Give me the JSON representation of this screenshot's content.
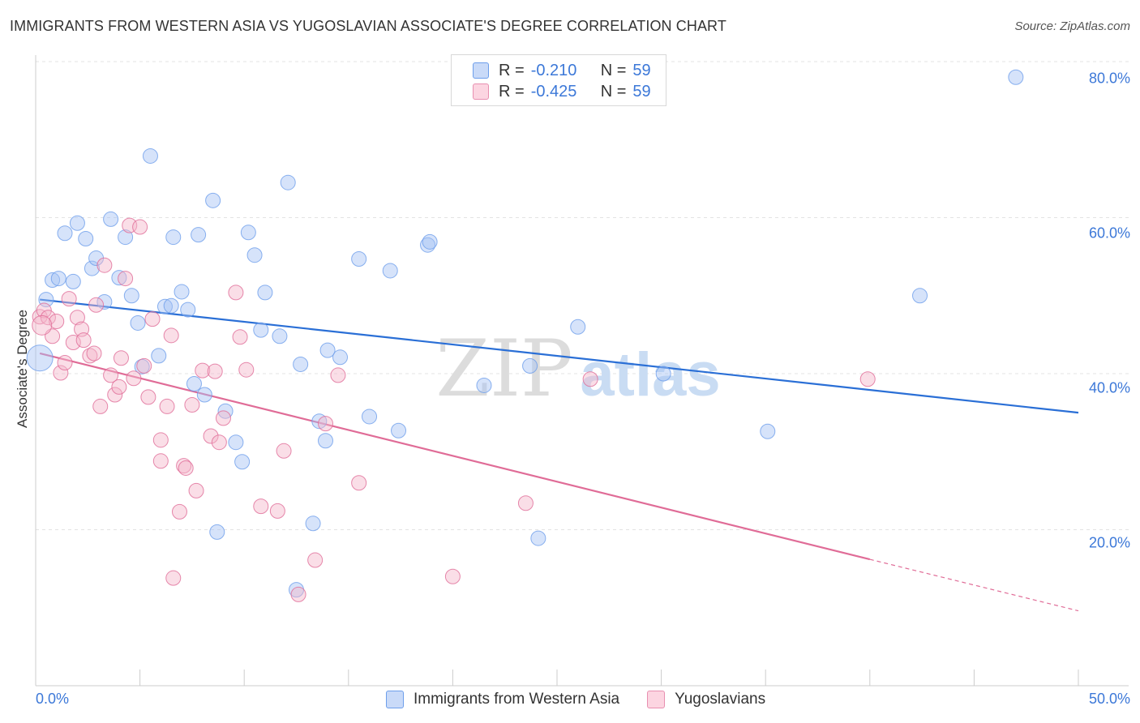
{
  "header": {
    "title": "IMMIGRANTS FROM WESTERN ASIA VS YUGOSLAVIAN ASSOCIATE'S DEGREE CORRELATION CHART",
    "source": "Source: ZipAtlas.com"
  },
  "watermark": {
    "zip": "ZIP",
    "atlas": "atlas"
  },
  "legend": {
    "r_label": "R =",
    "n_label": "N =",
    "rows": [
      {
        "r": "-0.210",
        "n": "59",
        "color": "#a4c2f4"
      },
      {
        "r": "-0.425",
        "n": "59",
        "color": "#f4b6c9"
      }
    ]
  },
  "chart_data": {
    "type": "scatter",
    "title": "IMMIGRANTS FROM WESTERN ASIA VS YUGOSLAVIAN ASSOCIATE'S DEGREE CORRELATION CHART",
    "xlabel": "",
    "ylabel": "Associate's Degree",
    "xlim": [
      0,
      50
    ],
    "ylim": [
      0,
      80
    ],
    "x_tick_labels": [
      "0.0%",
      "50.0%"
    ],
    "y_ticks": [
      20,
      40,
      60,
      80
    ],
    "y_tick_labels": [
      "20.0%",
      "40.0%",
      "60.0%",
      "80.0%"
    ],
    "grid": true,
    "legend_position": "top-center",
    "series": [
      {
        "name": "Immigrants from Western Asia",
        "color": "#6d9eeb",
        "fill": "#a4c2f4",
        "r": -0.21,
        "n": 59,
        "trend": {
          "x": [
            0.2,
            50
          ],
          "y": [
            49.5,
            35.0
          ]
        },
        "points": [
          [
            0.2,
            42.0
          ],
          [
            0.5,
            49.5
          ],
          [
            0.8,
            52.0
          ],
          [
            1.1,
            52.2
          ],
          [
            1.4,
            58.0
          ],
          [
            1.8,
            51.8
          ],
          [
            2.0,
            59.3
          ],
          [
            2.4,
            57.3
          ],
          [
            2.7,
            53.5
          ],
          [
            2.9,
            54.8
          ],
          [
            3.3,
            49.2
          ],
          [
            3.6,
            59.8
          ],
          [
            4.0,
            52.3
          ],
          [
            4.3,
            57.5
          ],
          [
            4.6,
            50.0
          ],
          [
            4.9,
            46.5
          ],
          [
            5.1,
            40.9
          ],
          [
            5.5,
            67.9
          ],
          [
            5.9,
            42.3
          ],
          [
            6.2,
            48.6
          ],
          [
            6.5,
            48.7
          ],
          [
            6.6,
            57.5
          ],
          [
            7.0,
            50.5
          ],
          [
            7.3,
            48.2
          ],
          [
            7.6,
            38.7
          ],
          [
            7.8,
            57.8
          ],
          [
            8.1,
            37.3
          ],
          [
            8.5,
            62.2
          ],
          [
            8.7,
            19.7
          ],
          [
            9.1,
            35.2
          ],
          [
            9.6,
            31.2
          ],
          [
            9.9,
            28.7
          ],
          [
            10.2,
            58.1
          ],
          [
            10.5,
            55.2
          ],
          [
            10.8,
            45.6
          ],
          [
            11.0,
            50.4
          ],
          [
            11.7,
            44.8
          ],
          [
            12.1,
            64.5
          ],
          [
            12.5,
            12.3
          ],
          [
            12.7,
            41.2
          ],
          [
            13.3,
            20.8
          ],
          [
            13.6,
            33.9
          ],
          [
            13.9,
            31.4
          ],
          [
            14.0,
            43.0
          ],
          [
            14.6,
            42.1
          ],
          [
            15.5,
            54.7
          ],
          [
            16.0,
            34.5
          ],
          [
            17.0,
            53.2
          ],
          [
            17.4,
            32.7
          ],
          [
            18.8,
            56.5
          ],
          [
            18.9,
            56.9
          ],
          [
            21.5,
            38.5
          ],
          [
            23.7,
            41.0
          ],
          [
            24.1,
            18.9
          ],
          [
            26.0,
            46.0
          ],
          [
            30.1,
            40.0
          ],
          [
            35.1,
            32.6
          ],
          [
            42.4,
            50.0
          ],
          [
            47.0,
            78.0
          ]
        ]
      },
      {
        "name": "Yugoslavians",
        "color": "#e06c97",
        "fill": "#f4b6c9",
        "r": -0.425,
        "n": 59,
        "trend_solid": {
          "x": [
            0.2,
            40
          ],
          "y": [
            42.6,
            16.2
          ]
        },
        "trend_dashed": {
          "x": [
            40,
            50
          ],
          "y": [
            16.2,
            9.6
          ]
        },
        "points": [
          [
            0.2,
            47.3
          ],
          [
            0.4,
            48.1
          ],
          [
            0.6,
            47.2
          ],
          [
            0.8,
            44.8
          ],
          [
            1.0,
            46.7
          ],
          [
            1.2,
            40.1
          ],
          [
            1.4,
            41.4
          ],
          [
            1.6,
            49.6
          ],
          [
            1.8,
            44.0
          ],
          [
            2.0,
            47.2
          ],
          [
            2.2,
            45.7
          ],
          [
            2.3,
            44.3
          ],
          [
            2.6,
            42.3
          ],
          [
            2.8,
            42.6
          ],
          [
            2.9,
            48.8
          ],
          [
            3.1,
            35.8
          ],
          [
            3.3,
            53.9
          ],
          [
            3.6,
            39.8
          ],
          [
            3.8,
            37.3
          ],
          [
            4.0,
            38.3
          ],
          [
            4.1,
            42.0
          ],
          [
            4.3,
            52.2
          ],
          [
            4.5,
            59.0
          ],
          [
            4.7,
            39.4
          ],
          [
            5.0,
            58.8
          ],
          [
            5.2,
            41.0
          ],
          [
            5.4,
            37.0
          ],
          [
            5.6,
            47.0
          ],
          [
            6.0,
            31.5
          ],
          [
            6.0,
            28.8
          ],
          [
            6.3,
            35.8
          ],
          [
            6.5,
            44.9
          ],
          [
            6.6,
            13.8
          ],
          [
            6.9,
            22.3
          ],
          [
            7.1,
            28.2
          ],
          [
            7.2,
            27.9
          ],
          [
            7.5,
            36.0
          ],
          [
            7.7,
            25.0
          ],
          [
            8.0,
            40.4
          ],
          [
            8.4,
            32.0
          ],
          [
            8.6,
            40.3
          ],
          [
            8.8,
            31.2
          ],
          [
            9.0,
            34.3
          ],
          [
            9.6,
            50.4
          ],
          [
            9.8,
            44.7
          ],
          [
            10.1,
            40.5
          ],
          [
            10.8,
            23.0
          ],
          [
            11.6,
            22.4
          ],
          [
            11.9,
            30.1
          ],
          [
            12.6,
            11.7
          ],
          [
            13.4,
            16.1
          ],
          [
            13.9,
            33.6
          ],
          [
            14.5,
            39.8
          ],
          [
            15.5,
            26.0
          ],
          [
            20.0,
            14.0
          ],
          [
            23.5,
            23.4
          ],
          [
            26.6,
            39.3
          ],
          [
            39.9,
            39.3
          ],
          [
            0.3,
            46.2
          ]
        ]
      }
    ]
  },
  "bottom_legend": [
    "Immigrants from Western Asia",
    "Yugoslavians"
  ]
}
